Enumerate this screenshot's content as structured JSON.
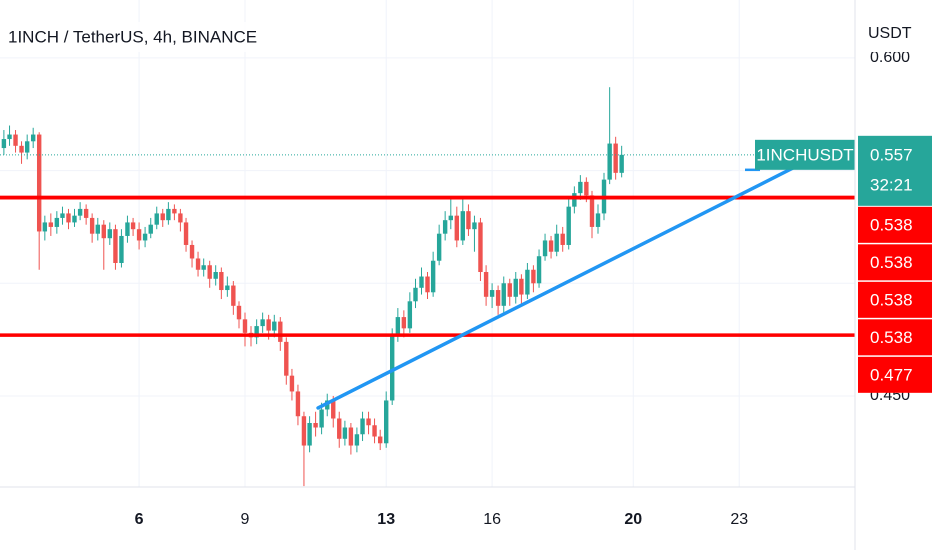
{
  "header": {
    "title": "1INCH / TetherUS, 4h, BINANCE"
  },
  "chart_data": {
    "type": "candlestick",
    "currency": "USDT",
    "symbol": "1INCHUSDT",
    "last_price": 0.557,
    "countdown": "32:21",
    "up_color": "#26a69a",
    "down_color": "#ef5350",
    "xlim": [
      2.06,
      26.28
    ],
    "xticks": [
      6,
      9,
      13,
      16,
      20,
      23
    ],
    "ylim": [
      0.4096,
      0.6257
    ],
    "yticks": [
      {
        "value": 0.45,
        "label": "0.450"
      },
      {
        "value": 0.6,
        "label": "0.600"
      }
    ],
    "ygrid": [
      0.45,
      0.5,
      0.55,
      0.6
    ],
    "levels": [
      {
        "value": 0.538,
        "color": "#ff0000"
      },
      {
        "value": 0.538,
        "color": "#ff0000"
      },
      {
        "value": 0.538,
        "color": "#ff0000"
      },
      {
        "value": 0.538,
        "color": "#ff0000"
      },
      {
        "value": 0.477,
        "color": "#ff0000"
      }
    ],
    "trendline": {
      "x": [
        11.07,
        24.58
      ],
      "y": [
        0.4447,
        0.5516
      ],
      "color": "#2196f3"
    },
    "x": [
      2.17,
      2.33,
      2.5,
      2.67,
      2.83,
      3,
      3.17,
      3.33,
      3.5,
      3.67,
      3.83,
      4,
      4.17,
      4.33,
      4.5,
      4.67,
      4.83,
      5,
      5.17,
      5.33,
      5.5,
      5.67,
      5.83,
      6,
      6.17,
      6.33,
      6.5,
      6.67,
      6.83,
      7,
      7.17,
      7.33,
      7.5,
      7.67,
      7.83,
      8,
      8.17,
      8.33,
      8.5,
      8.67,
      8.83,
      9,
      9.17,
      9.33,
      9.5,
      9.67,
      9.83,
      10,
      10.17,
      10.33,
      10.5,
      10.67,
      10.83,
      11,
      11.17,
      11.33,
      11.5,
      11.67,
      11.83,
      12,
      12.17,
      12.33,
      12.5,
      12.67,
      12.83,
      13,
      13.17,
      13.33,
      13.5,
      13.67,
      13.83,
      14,
      14.17,
      14.33,
      14.5,
      14.67,
      14.83,
      15,
      15.17,
      15.33,
      15.5,
      15.67,
      15.83,
      16,
      16.17,
      16.33,
      16.5,
      16.67,
      16.83,
      17,
      17.17,
      17.33,
      17.5,
      17.67,
      17.83,
      18,
      18.17,
      18.33,
      18.5,
      18.67,
      18.83,
      19,
      19.17,
      19.33,
      19.5,
      19.67
    ],
    "open": [
      0.56,
      0.564,
      0.566,
      0.561,
      0.558,
      0.563,
      0.566,
      0.523,
      0.527,
      0.525,
      0.529,
      0.531,
      0.527,
      0.53,
      0.533,
      0.529,
      0.522,
      0.526,
      0.52,
      0.524,
      0.509,
      0.521,
      0.527,
      0.524,
      0.519,
      0.522,
      0.526,
      0.531,
      0.528,
      0.533,
      0.531,
      0.527,
      0.517,
      0.511,
      0.506,
      0.508,
      0.502,
      0.505,
      0.497,
      0.499,
      0.49,
      0.484,
      0.478,
      0.476,
      0.481,
      0.484,
      0.479,
      0.483,
      0.474,
      0.459,
      0.452,
      0.441,
      0.428,
      0.438,
      0.436,
      0.444,
      0.448,
      0.44,
      0.431,
      0.436,
      0.428,
      0.433,
      0.44,
      0.437,
      0.432,
      0.429,
      0.448,
      0.477,
      0.485,
      0.48,
      0.492,
      0.498,
      0.503,
      0.496,
      0.51,
      0.522,
      0.528,
      0.53,
      0.519,
      0.532,
      0.524,
      0.527,
      0.505,
      0.494,
      0.497,
      0.49,
      0.5,
      0.494,
      0.502,
      0.495,
      0.506,
      0.5,
      0.512,
      0.519,
      0.514,
      0.522,
      0.517,
      0.534,
      0.54,
      0.545,
      0.539,
      0.525,
      0.531,
      0.546,
      0.562,
      0.549
    ],
    "high": [
      0.568,
      0.57,
      0.568,
      0.563,
      0.566,
      0.569,
      0.567,
      0.53,
      0.531,
      0.532,
      0.534,
      0.533,
      0.533,
      0.536,
      0.535,
      0.531,
      0.529,
      0.528,
      0.527,
      0.526,
      0.524,
      0.53,
      0.529,
      0.527,
      0.525,
      0.529,
      0.534,
      0.533,
      0.536,
      0.535,
      0.533,
      0.529,
      0.519,
      0.514,
      0.511,
      0.51,
      0.508,
      0.507,
      0.503,
      0.501,
      0.492,
      0.487,
      0.481,
      0.484,
      0.487,
      0.486,
      0.486,
      0.485,
      0.476,
      0.462,
      0.455,
      0.443,
      0.441,
      0.443,
      0.447,
      0.451,
      0.45,
      0.443,
      0.439,
      0.438,
      0.436,
      0.443,
      0.443,
      0.44,
      0.435,
      0.452,
      0.48,
      0.489,
      0.488,
      0.496,
      0.502,
      0.507,
      0.505,
      0.514,
      0.526,
      0.532,
      0.538,
      0.534,
      0.538,
      0.535,
      0.53,
      0.529,
      0.508,
      0.5,
      0.499,
      0.503,
      0.502,
      0.505,
      0.504,
      0.509,
      0.508,
      0.515,
      0.522,
      0.521,
      0.526,
      0.525,
      0.538,
      0.543,
      0.548,
      0.547,
      0.541,
      0.535,
      0.549,
      0.587,
      0.565,
      0.561
    ],
    "low": [
      0.557,
      0.561,
      0.558,
      0.553,
      0.555,
      0.56,
      0.506,
      0.519,
      0.521,
      0.522,
      0.526,
      0.524,
      0.525,
      0.528,
      0.526,
      0.518,
      0.519,
      0.506,
      0.517,
      0.506,
      0.507,
      0.518,
      0.521,
      0.515,
      0.516,
      0.52,
      0.524,
      0.525,
      0.526,
      0.528,
      0.523,
      0.514,
      0.507,
      0.503,
      0.503,
      0.498,
      0.499,
      0.493,
      0.494,
      0.486,
      0.48,
      0.472,
      0.472,
      0.473,
      0.478,
      0.475,
      0.476,
      0.47,
      0.455,
      0.448,
      0.437,
      0.41,
      0.425,
      0.432,
      0.433,
      0.441,
      0.436,
      0.427,
      0.428,
      0.424,
      0.425,
      0.43,
      0.433,
      0.429,
      0.426,
      0.427,
      0.446,
      0.474,
      0.476,
      0.478,
      0.489,
      0.495,
      0.493,
      0.494,
      0.508,
      0.519,
      0.524,
      0.516,
      0.517,
      0.521,
      0.514,
      0.501,
      0.49,
      0.489,
      0.486,
      0.487,
      0.49,
      0.491,
      0.491,
      0.493,
      0.496,
      0.498,
      0.51,
      0.511,
      0.512,
      0.514,
      0.515,
      0.531,
      0.537,
      0.536,
      0.52,
      0.522,
      0.528,
      0.544,
      0.546,
      0.547
    ],
    "close": [
      0.564,
      0.566,
      0.561,
      0.558,
      0.563,
      0.566,
      0.523,
      0.527,
      0.525,
      0.529,
      0.531,
      0.527,
      0.53,
      0.533,
      0.529,
      0.522,
      0.526,
      0.52,
      0.524,
      0.509,
      0.521,
      0.527,
      0.524,
      0.519,
      0.522,
      0.526,
      0.531,
      0.528,
      0.533,
      0.531,
      0.527,
      0.517,
      0.511,
      0.506,
      0.508,
      0.502,
      0.505,
      0.497,
      0.499,
      0.49,
      0.484,
      0.478,
      0.476,
      0.481,
      0.484,
      0.479,
      0.483,
      0.474,
      0.459,
      0.452,
      0.441,
      0.428,
      0.438,
      0.436,
      0.444,
      0.448,
      0.44,
      0.431,
      0.436,
      0.428,
      0.433,
      0.44,
      0.437,
      0.432,
      0.429,
      0.448,
      0.477,
      0.485,
      0.48,
      0.492,
      0.498,
      0.503,
      0.496,
      0.51,
      0.522,
      0.528,
      0.53,
      0.519,
      0.532,
      0.524,
      0.527,
      0.505,
      0.494,
      0.497,
      0.49,
      0.5,
      0.494,
      0.502,
      0.495,
      0.506,
      0.5,
      0.512,
      0.519,
      0.514,
      0.522,
      0.517,
      0.534,
      0.54,
      0.545,
      0.539,
      0.525,
      0.531,
      0.546,
      0.562,
      0.549,
      0.557
    ]
  }
}
